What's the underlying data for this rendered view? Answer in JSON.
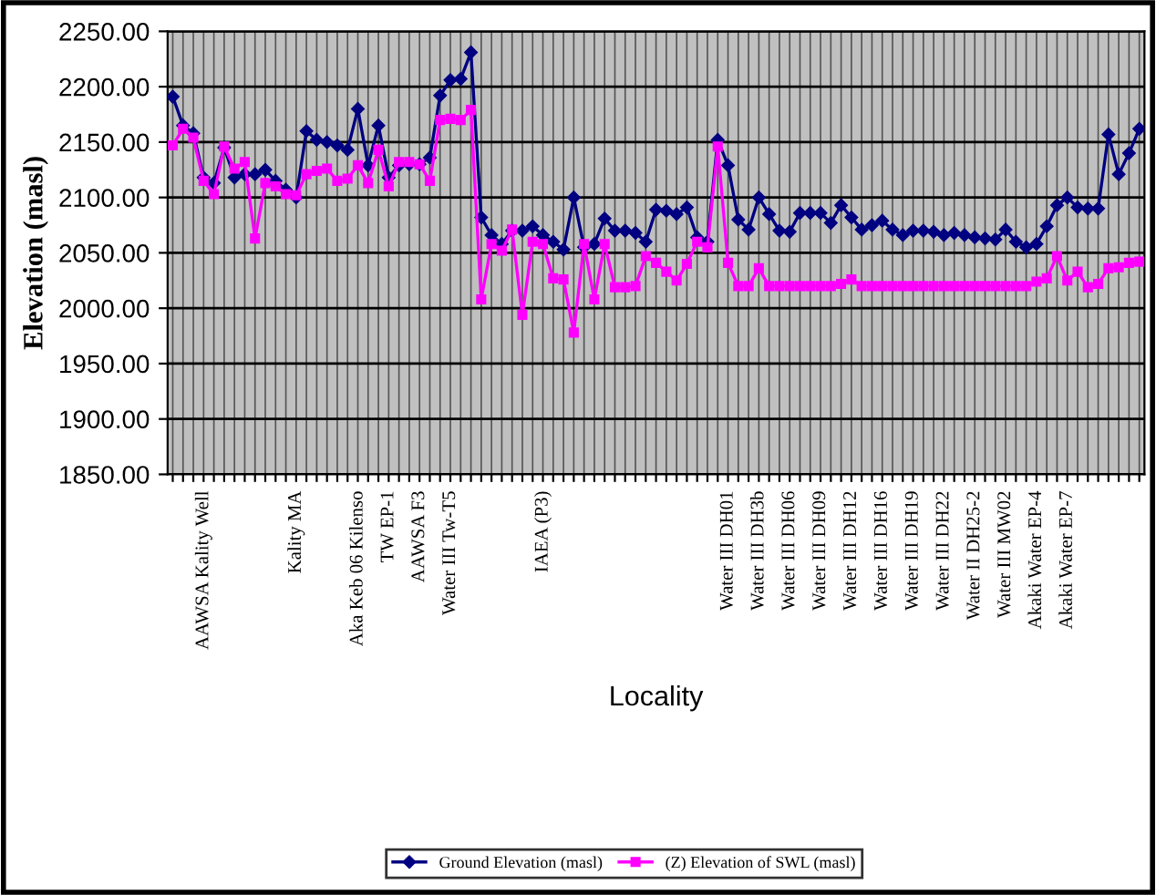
{
  "chart_data": {
    "type": "line",
    "xlabel": "Locality",
    "ylabel": "Elevation (masl)",
    "categories": [
      null,
      null,
      null,
      "AAWSA Kality Well",
      null,
      null,
      null,
      null,
      null,
      null,
      null,
      null,
      "Kality MA",
      null,
      null,
      null,
      null,
      null,
      "Aka Keb 06 Kilenso",
      null,
      null,
      "TW EP-1",
      null,
      null,
      "AAWSA F3",
      null,
      null,
      "Water III Tw-T5",
      null,
      null,
      null,
      null,
      null,
      null,
      null,
      null,
      "IAEA (P3)",
      null,
      null,
      null,
      null,
      null,
      null,
      null,
      null,
      null,
      null,
      null,
      null,
      null,
      null,
      null,
      null,
      null,
      "Water III DH01",
      null,
      null,
      "Water III DH3b",
      null,
      null,
      "Water III DH06",
      null,
      null,
      "Water III DH09",
      null,
      null,
      "Water III DH12",
      null,
      null,
      "Water III DH16",
      null,
      null,
      "Water III DH19",
      null,
      null,
      "Water III DH22",
      null,
      null,
      "Water II DH25-2",
      null,
      null,
      "Water III MW02",
      null,
      null,
      "Akaki Water EP-4",
      null,
      null,
      "Akaki Water EP-7",
      null,
      null,
      null,
      null,
      null,
      null,
      null
    ],
    "series": [
      {
        "name": "Ground Elevation (masl)",
        "color": "#000080",
        "marker": "diamond",
        "values": [
          2191,
          2165,
          2158,
          2118,
          2113,
          2145,
          2118,
          2121,
          2121,
          2125,
          2115,
          2107,
          2100,
          2160,
          2152,
          2150,
          2147,
          2143,
          2180,
          2129,
          2165,
          2118,
          2129,
          2130,
          2130,
          2136,
          2192,
          2206,
          2207,
          2231,
          2082,
          2066,
          2058,
          2070,
          2070,
          2074,
          2066,
          2060,
          2053,
          2100,
          2055,
          2058,
          2081,
          2070,
          2070,
          2068,
          2060,
          2089,
          2088,
          2085,
          2091,
          2064,
          2060,
          2152,
          2129,
          2080,
          2071,
          2100,
          2085,
          2070,
          2069,
          2086,
          2086,
          2086,
          2077,
          2093,
          2082,
          2071,
          2075,
          2079,
          2071,
          2066,
          2070,
          2070,
          2069,
          2066,
          2068,
          2066,
          2064,
          2063,
          2062,
          2071,
          2060,
          2055,
          2058,
          2074,
          2093,
          2100,
          2091,
          2090,
          2090,
          2157,
          2121,
          2140,
          2162
        ]
      },
      {
        "name": "(Z) Elevation of SWL (masl)",
        "color": "#ff00ff",
        "marker": "square",
        "values": [
          2147,
          2162,
          2154,
          2115,
          2103,
          2146,
          2126,
          2132,
          2063,
          2113,
          2110,
          2103,
          2102,
          2121,
          2124,
          2126,
          2115,
          2117,
          2129,
          2113,
          2143,
          2110,
          2132,
          2132,
          2130,
          2115,
          2170,
          2171,
          2170,
          2179,
          2008,
          2058,
          2052,
          2071,
          1994,
          2060,
          2058,
          2027,
          2026,
          1978,
          2058,
          2008,
          2058,
          2019,
          2019,
          2020,
          2047,
          2041,
          2033,
          2025,
          2040,
          2060,
          2055,
          2146,
          2041,
          2020,
          2020,
          2036,
          2020,
          2020,
          2020,
          2020,
          2020,
          2020,
          2020,
          2022,
          2026,
          2020,
          2020,
          2020,
          2020,
          2020,
          2020,
          2020,
          2020,
          2020,
          2020,
          2020,
          2020,
          2020,
          2020,
          2020,
          2020,
          2020,
          2024,
          2027,
          2047,
          2025,
          2033,
          2019,
          2022,
          2036,
          2037,
          2041,
          2042
        ]
      }
    ],
    "ylim": [
      1850,
      2250
    ],
    "yticks": [
      {
        "value": 1850,
        "label": "1850.00"
      },
      {
        "value": 1900,
        "label": "1900.00"
      },
      {
        "value": 1950,
        "label": "1950.00"
      },
      {
        "value": 2000,
        "label": "2000.00"
      },
      {
        "value": 2050,
        "label": "2050.00"
      },
      {
        "value": 2100,
        "label": "2100.00"
      },
      {
        "value": 2150,
        "label": "2150.00"
      },
      {
        "value": 2200,
        "label": "2200.00"
      },
      {
        "value": 2250,
        "label": "2250.00"
      }
    ],
    "grid": true,
    "legend": "bottom",
    "line_style": "solid"
  }
}
